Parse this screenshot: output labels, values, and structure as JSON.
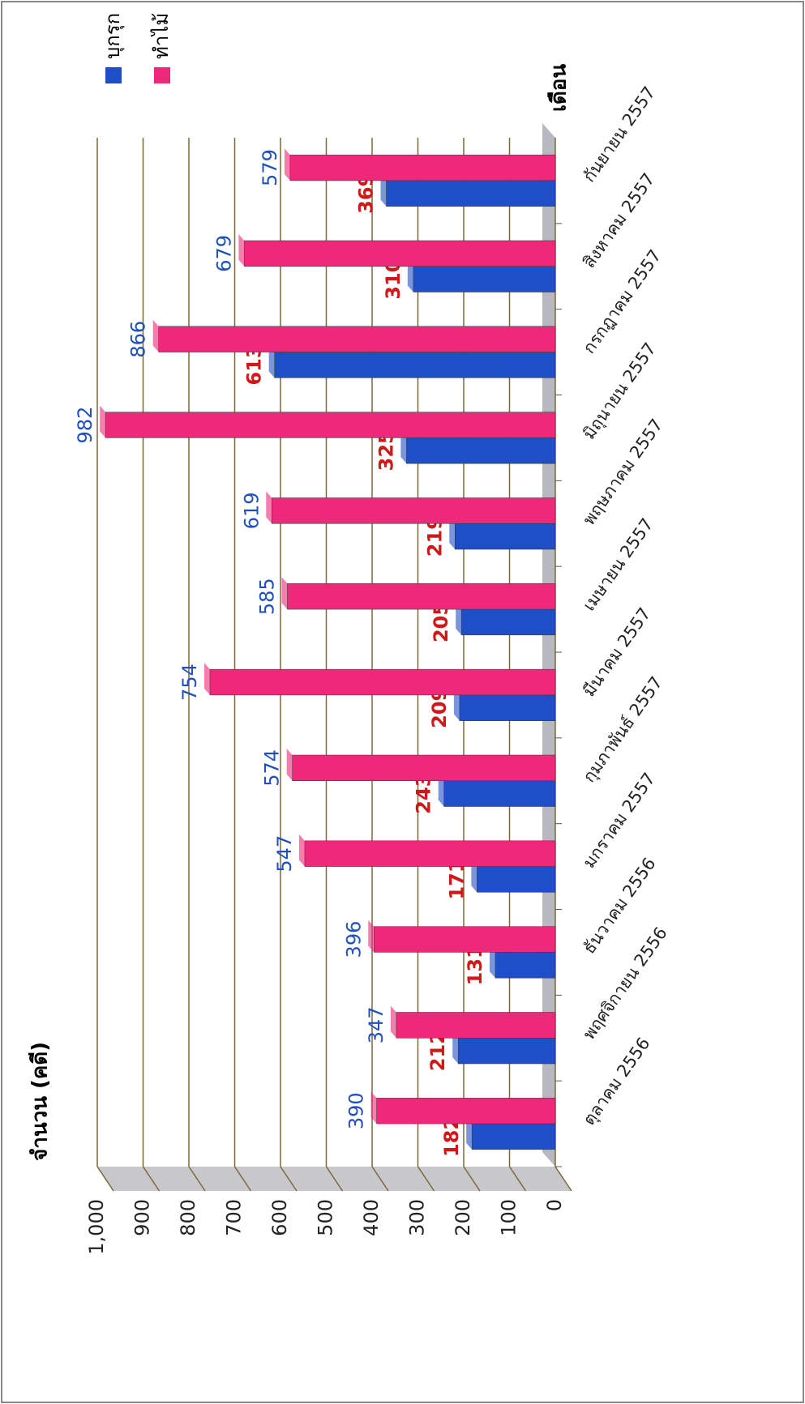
{
  "chart_data": {
    "type": "bar",
    "y_label": "จำนวน (คดี)",
    "x_label": "เดือน",
    "categories": [
      "ตุลาคม 2556",
      "พฤศจิกายน 2556",
      "ธันวาคม 2556",
      "มกราคม 2557",
      "กุมภาพันธ์ 2557",
      "มีนาคม 2557",
      "เมษายน 2557",
      "พฤษภาคม 2557",
      "มิถุนายน 2557",
      "กรกฎาคม 2557",
      "สิงหาคม 2557",
      "กันยายน 2557"
    ],
    "series": [
      {
        "name": "บุกรุก",
        "color": "#1f4fc8",
        "label_color": "#d01818",
        "values": [
          182,
          212,
          131,
          171,
          243,
          209,
          205,
          219,
          325,
          613,
          310,
          369
        ]
      },
      {
        "name": "ทำไม้",
        "color": "#f0287a",
        "label_color": "#2050c0",
        "values": [
          390,
          347,
          396,
          547,
          574,
          754,
          585,
          619,
          982,
          866,
          679,
          579
        ]
      }
    ],
    "ylim": [
      0,
      1000
    ],
    "yticks": [
      0,
      100,
      200,
      300,
      400,
      500,
      600,
      700,
      800,
      900,
      {
        "value": 1000,
        "label": "1,000"
      }
    ],
    "grid": true
  }
}
